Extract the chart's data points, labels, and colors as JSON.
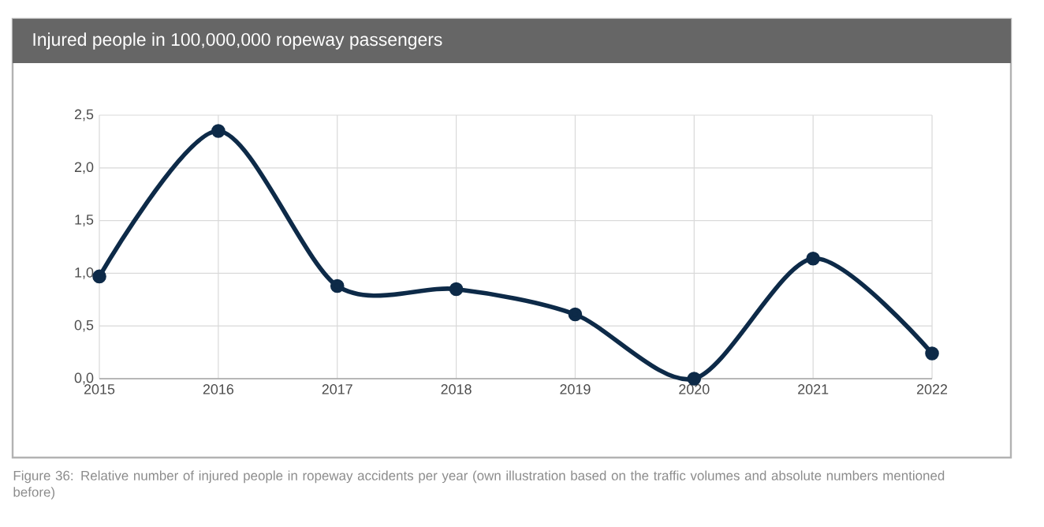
{
  "chart_data": {
    "type": "line",
    "title": "Injured people in 100,000,000 ropeway passengers",
    "categories": [
      "2015",
      "2016",
      "2017",
      "2018",
      "2019",
      "2020",
      "2021",
      "2022"
    ],
    "values": [
      0.97,
      2.35,
      0.88,
      0.85,
      0.61,
      0.0,
      1.14,
      0.24
    ],
    "color": "#0d2a48",
    "ylim": [
      0,
      2.5
    ],
    "yticks": [
      {
        "value": 0,
        "label": "0,0"
      },
      {
        "value": 0.5,
        "label": "0,5"
      },
      {
        "value": 1,
        "label": "1,0"
      },
      {
        "value": 1.5,
        "label": "1,5"
      },
      {
        "value": 2,
        "label": "2,0"
      },
      {
        "value": 2.5,
        "label": "2,5"
      }
    ],
    "grid": true,
    "marker": "circle",
    "line_style": "solid",
    "annotations": [
      "Figure 36: Relative number of injured people in ropeway accidents per year (own illustration based on the traffic volumes and absolute numbers mentioned before)"
    ]
  }
}
